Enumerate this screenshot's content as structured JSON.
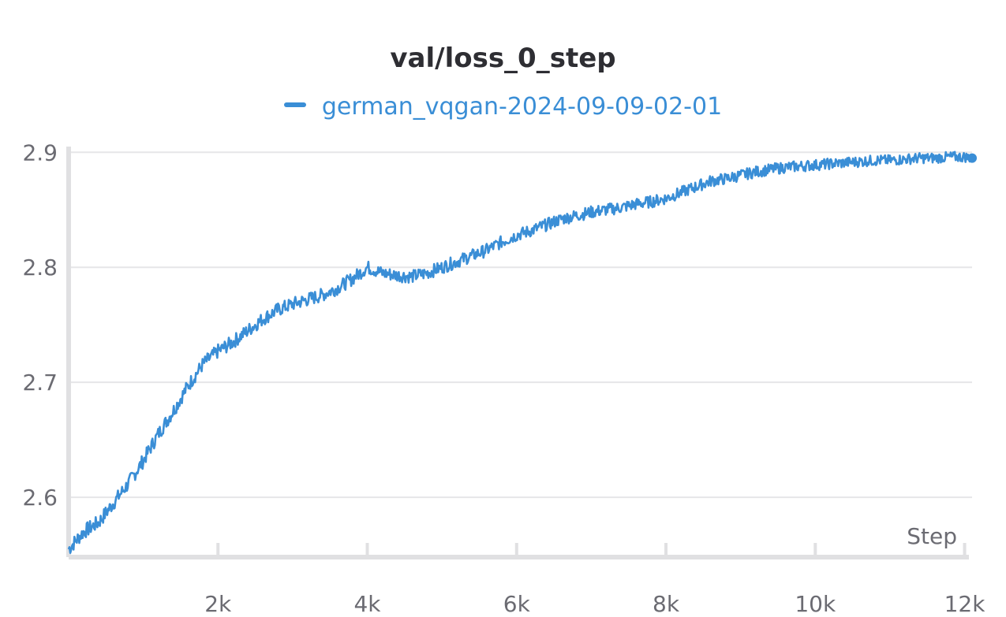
{
  "chart_data": {
    "type": "line",
    "title": "val/loss_0_step",
    "xlabel": "Step",
    "ylabel": "",
    "legend_placement": "top-center",
    "grid": true,
    "xlim": [
      0,
      12100
    ],
    "ylim": [
      2.548,
      2.905
    ],
    "x_ticks": [
      {
        "value": 2000,
        "label": "2k"
      },
      {
        "value": 4000,
        "label": "4k"
      },
      {
        "value": 6000,
        "label": "6k"
      },
      {
        "value": 8000,
        "label": "8k"
      },
      {
        "value": 10000,
        "label": "10k"
      },
      {
        "value": 12000,
        "label": "12k"
      }
    ],
    "y_ticks": [
      {
        "value": 2.6,
        "label": "2.6"
      },
      {
        "value": 2.7,
        "label": "2.7"
      },
      {
        "value": 2.8,
        "label": "2.8"
      },
      {
        "value": 2.9,
        "label": "2.9"
      }
    ],
    "series": [
      {
        "name": "german_vqgan-2024-09-09-02-01",
        "color": "#3a8ed6",
        "x": [
          0,
          200,
          400,
          600,
          800,
          1000,
          1200,
          1400,
          1600,
          1800,
          2000,
          2200,
          2400,
          2600,
          2800,
          3000,
          3200,
          3400,
          3600,
          3800,
          4000,
          4200,
          4400,
          4600,
          4800,
          5000,
          5200,
          5400,
          5600,
          5800,
          6000,
          6200,
          6400,
          6600,
          6800,
          7000,
          7200,
          7400,
          7600,
          7800,
          8000,
          8200,
          8400,
          8600,
          8800,
          9000,
          9200,
          9400,
          9600,
          9800,
          10000,
          10200,
          10400,
          10600,
          10800,
          11000,
          11200,
          11400,
          11600,
          11800,
          12000,
          12100
        ],
        "y": [
          2.555,
          2.57,
          2.578,
          2.595,
          2.612,
          2.632,
          2.655,
          2.675,
          2.697,
          2.716,
          2.727,
          2.735,
          2.745,
          2.755,
          2.763,
          2.768,
          2.772,
          2.776,
          2.782,
          2.79,
          2.8,
          2.795,
          2.793,
          2.792,
          2.795,
          2.8,
          2.805,
          2.81,
          2.815,
          2.822,
          2.828,
          2.832,
          2.837,
          2.842,
          2.845,
          2.848,
          2.85,
          2.852,
          2.855,
          2.857,
          2.86,
          2.865,
          2.87,
          2.875,
          2.877,
          2.88,
          2.883,
          2.885,
          2.887,
          2.888,
          2.889,
          2.89,
          2.891,
          2.892,
          2.893,
          2.893,
          2.894,
          2.895,
          2.895,
          2.896,
          2.896,
          2.895
        ]
      }
    ]
  }
}
